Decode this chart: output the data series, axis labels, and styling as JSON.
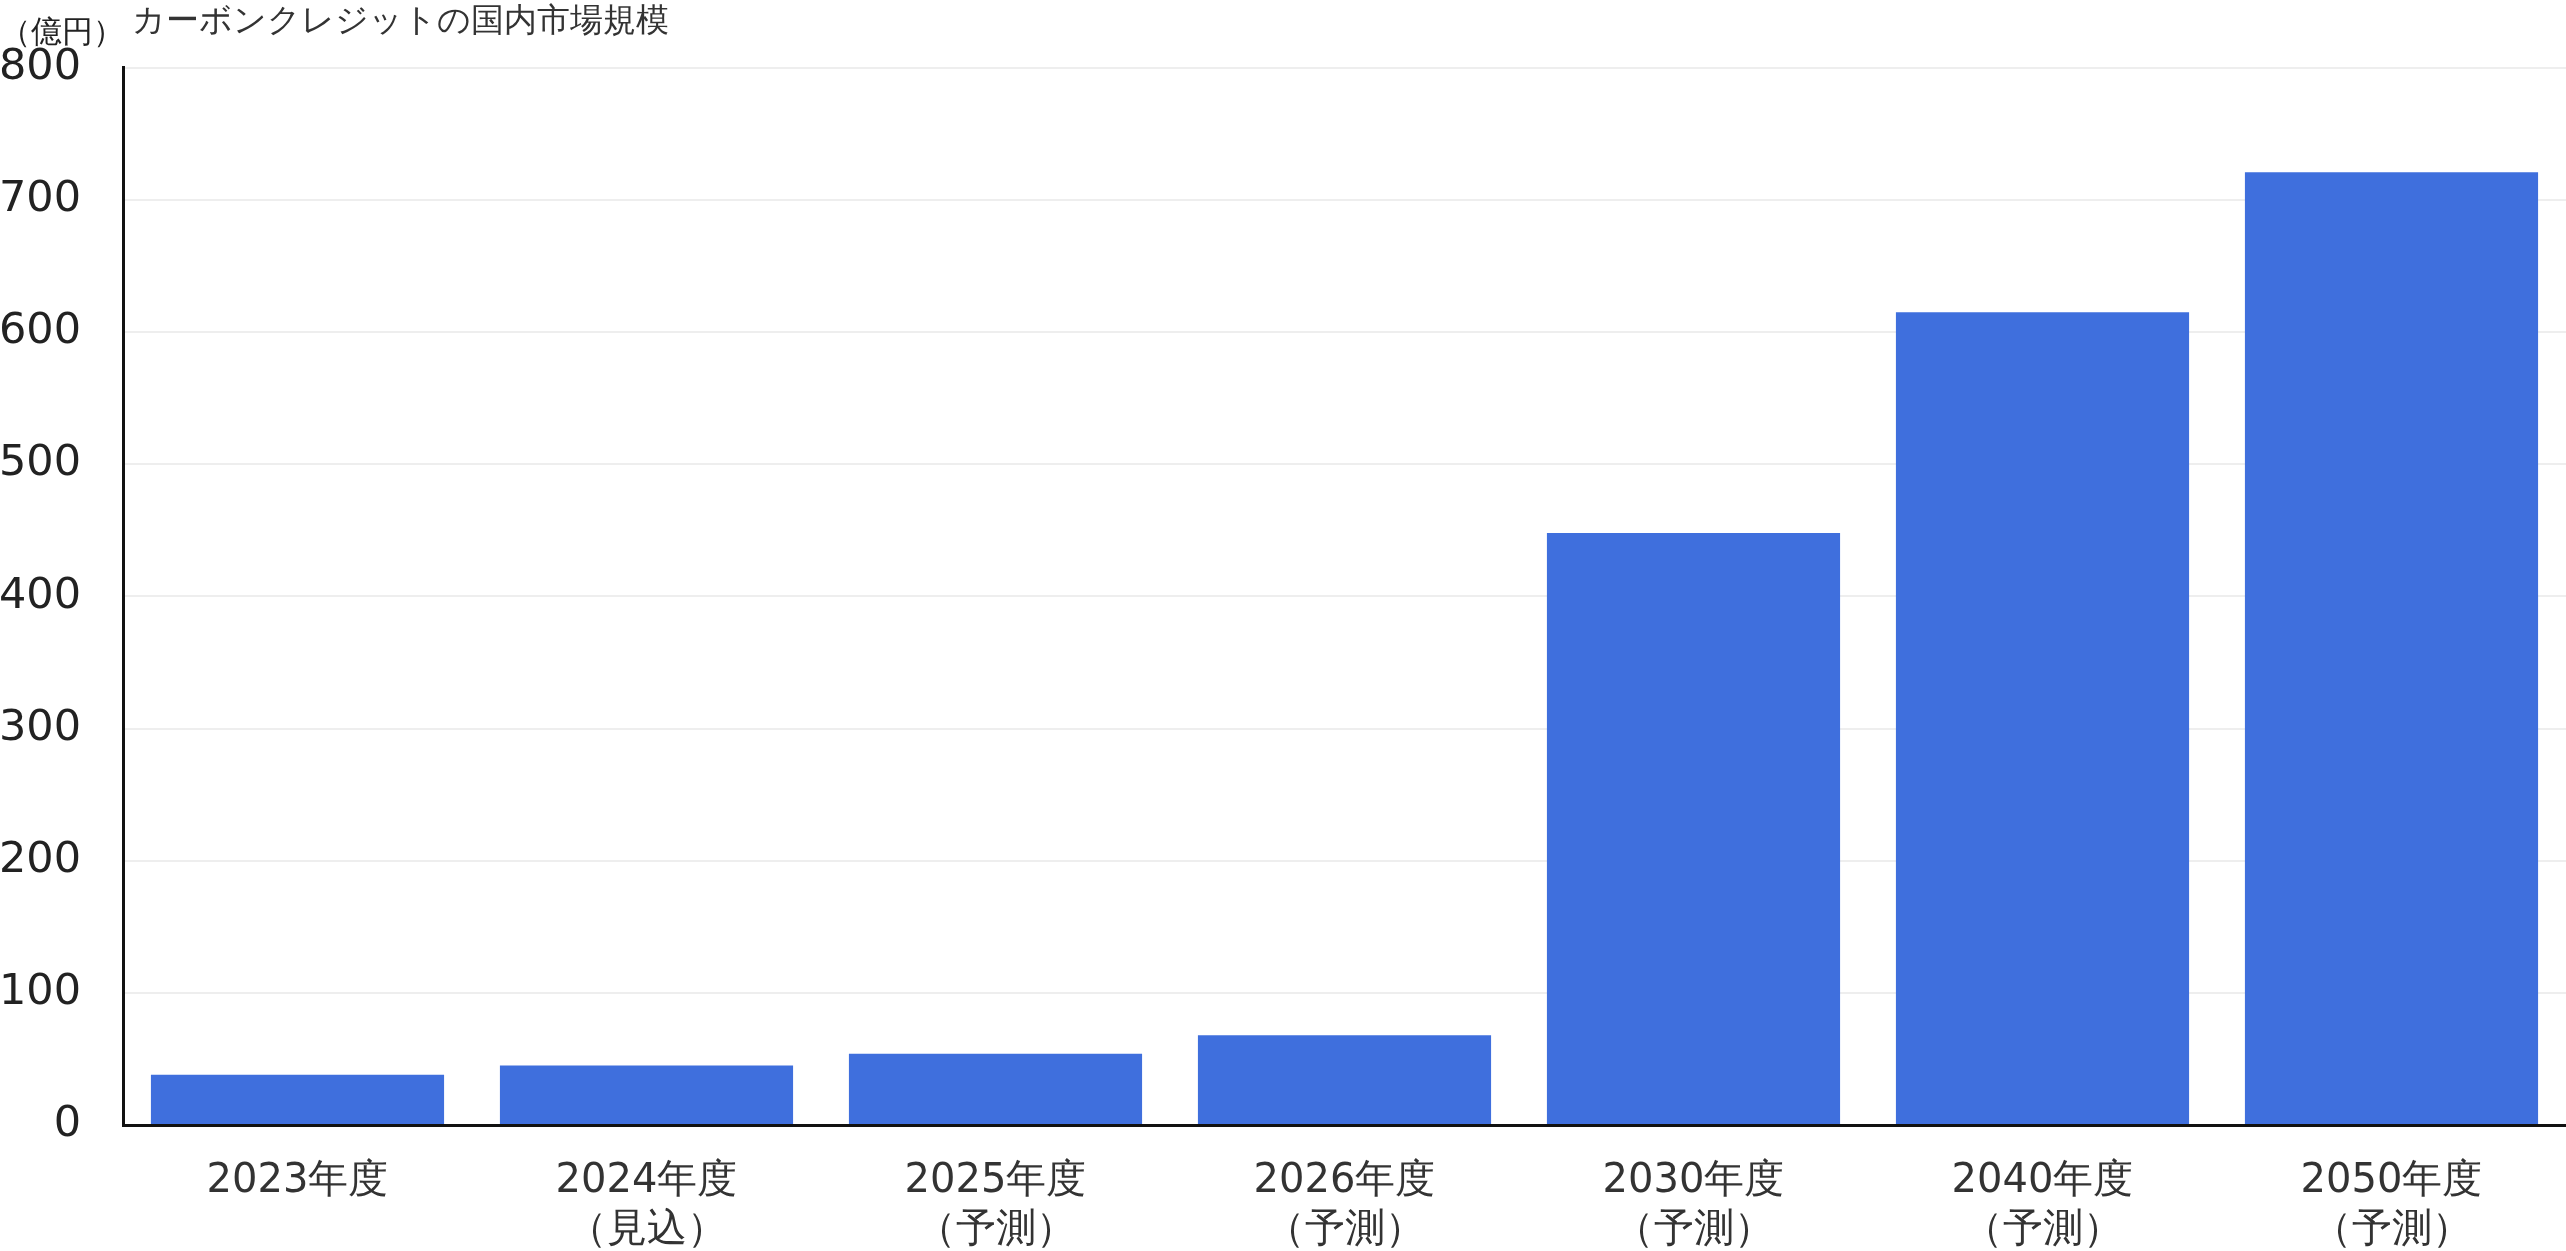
{
  "chart_data": {
    "type": "bar",
    "title": "カーボンクレジットの国内市場規模",
    "ylabel": "（億円）",
    "categories": [
      "2023年度",
      "2024年度（見込）",
      "2025年度（予測）",
      "2026年度（予測）",
      "2030年度（予測）",
      "2040年度（予測）",
      "2050年度（予測）"
    ],
    "values": [
      38,
      45,
      54,
      68,
      448,
      615,
      721
    ],
    "color": "#3f6fdd",
    "ylim": [
      0,
      800
    ],
    "yticks": [
      0,
      100,
      200,
      300,
      400,
      500,
      600,
      700,
      800
    ],
    "grid": "y"
  }
}
